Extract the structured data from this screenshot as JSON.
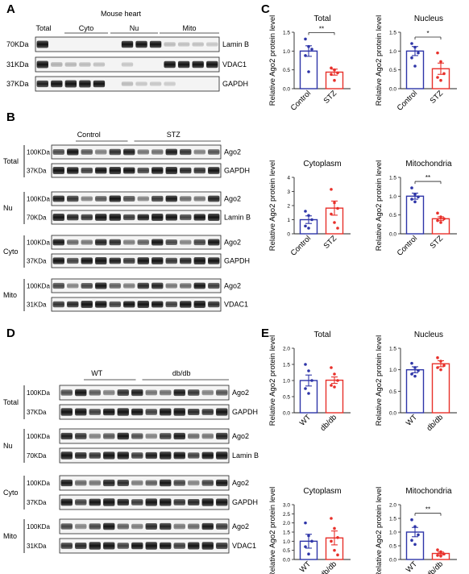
{
  "panelA": {
    "letter": "A",
    "header": "Mouse heart",
    "groups": [
      "Total",
      "Cyto",
      "Nu",
      "Mito"
    ],
    "rows": [
      {
        "size": "70KDa",
        "protein": "Lamin B"
      },
      {
        "size": "31KDa",
        "protein": "VDAC1"
      },
      {
        "size": "37KDa",
        "protein": "GAPDH"
      }
    ]
  },
  "panelB": {
    "letter": "B",
    "groups": [
      "Control",
      "STZ"
    ],
    "blocks": [
      {
        "fraction": "Total",
        "rows": [
          {
            "size": "100KDa",
            "protein": "Ago2"
          },
          {
            "size": "37KDa",
            "protein": "GAPDH"
          }
        ]
      },
      {
        "fraction": "Nu",
        "rows": [
          {
            "size": "100KDa",
            "protein": "Ago2"
          },
          {
            "size": "70KDa",
            "protein": "Lamin B"
          }
        ]
      },
      {
        "fraction": "Cyto",
        "rows": [
          {
            "size": "100KDa",
            "protein": "Ago2"
          },
          {
            "size": "37KDa",
            "protein": "GAPDH"
          }
        ]
      },
      {
        "fraction": "Mito",
        "rows": [
          {
            "size": "100KDa",
            "protein": "Ago2"
          },
          {
            "size": "31KDa",
            "protein": "VDAC1"
          }
        ]
      }
    ]
  },
  "panelD": {
    "letter": "D",
    "groups": [
      "WT",
      "db/db"
    ],
    "blocks": [
      {
        "fraction": "Total",
        "rows": [
          {
            "size": "100KDa",
            "protein": "Ago2"
          },
          {
            "size": "37KDa",
            "protein": "GAPDH"
          }
        ]
      },
      {
        "fraction": "Nu",
        "rows": [
          {
            "size": "100KDa",
            "protein": "Ago2"
          },
          {
            "size": "70KDa",
            "protein": "Lamin B"
          }
        ]
      },
      {
        "fraction": "Cyto",
        "rows": [
          {
            "size": "100KDa",
            "protein": "Ago2"
          },
          {
            "size": "37KDa",
            "protein": "GAPDH"
          }
        ]
      },
      {
        "fraction": "Mito",
        "rows": [
          {
            "size": "100KDa",
            "protein": "Ago2"
          },
          {
            "size": "31KDa",
            "protein": "VDAC1"
          }
        ]
      }
    ]
  },
  "colors": {
    "group1": "#2e35a8",
    "group2": "#e8302a"
  },
  "chart_data": [
    {
      "panel": "C",
      "type": "bar",
      "title": "Total",
      "ylabel": "Relative Ago2 protein level",
      "categories": [
        "Control",
        "STZ"
      ],
      "values": [
        1.0,
        0.44
      ],
      "errors": [
        0.14,
        0.08
      ],
      "ylim": [
        0,
        1.5
      ],
      "yticks": [
        "0.0",
        "0.5",
        "1.0",
        "1.5"
      ],
      "significance": "**",
      "points": [
        [
          1.32,
          1.12,
          1.05,
          0.88,
          0.45
        ],
        [
          0.55,
          0.5,
          0.42,
          0.38,
          0.22
        ]
      ]
    },
    {
      "panel": "C",
      "type": "bar",
      "title": "Nucleus",
      "ylabel": "Relative Ago2 protein level",
      "categories": [
        "Control",
        "STZ"
      ],
      "values": [
        1.0,
        0.53
      ],
      "errors": [
        0.12,
        0.15
      ],
      "ylim": [
        0,
        1.5
      ],
      "yticks": [
        "0.0",
        "0.5",
        "1.0",
        "1.5"
      ],
      "significance": "*",
      "points": [
        [
          1.2,
          1.1,
          0.95,
          0.82,
          0.6
        ],
        [
          0.95,
          0.72,
          0.4,
          0.3,
          0.22
        ]
      ]
    },
    {
      "panel": "C",
      "type": "bar",
      "title": "Cytoplasm",
      "ylabel": "Relative Ago2 protein level",
      "categories": [
        "Control",
        "STZ"
      ],
      "values": [
        1.0,
        1.82
      ],
      "errors": [
        0.27,
        0.5
      ],
      "ylim": [
        0,
        4
      ],
      "yticks": [
        "0",
        "1",
        "2",
        "3",
        "4"
      ],
      "significance": "",
      "points": [
        [
          1.6,
          1.3,
          1.0,
          0.55,
          0.4
        ],
        [
          3.15,
          2.2,
          1.8,
          1.4,
          0.8,
          0.4
        ]
      ]
    },
    {
      "panel": "C",
      "type": "bar",
      "title": "Mitochondria",
      "ylabel": "Relative Ago2 protein level",
      "categories": [
        "Control",
        "STZ"
      ],
      "values": [
        1.0,
        0.4
      ],
      "errors": [
        0.08,
        0.05
      ],
      "ylim": [
        0,
        1.5
      ],
      "yticks": [
        "0.0",
        "0.5",
        "1.0",
        "1.5"
      ],
      "significance": "**",
      "points": [
        [
          1.22,
          1.05,
          0.98,
          0.92,
          0.85
        ],
        [
          0.55,
          0.45,
          0.4,
          0.35,
          0.3
        ]
      ]
    },
    {
      "panel": "E",
      "type": "bar",
      "title": "Total",
      "ylabel": "Relative Ago2 protein level",
      "categories": [
        "WT",
        "db/db"
      ],
      "values": [
        1.0,
        1.01
      ],
      "errors": [
        0.17,
        0.1
      ],
      "ylim": [
        0,
        2.0
      ],
      "yticks": [
        "0.0",
        "0.5",
        "1.0",
        "1.5",
        "2.0"
      ],
      "significance": "",
      "points": [
        [
          1.5,
          1.3,
          1.0,
          0.75,
          0.6
        ],
        [
          1.4,
          1.2,
          1.0,
          0.85,
          0.8
        ]
      ]
    },
    {
      "panel": "E",
      "type": "bar",
      "title": "Nucleus",
      "ylabel": "Relative Ago2 protein level",
      "categories": [
        "WT",
        "db/db"
      ],
      "values": [
        1.0,
        1.14
      ],
      "errors": [
        0.07,
        0.07
      ],
      "ylim": [
        0,
        1.5
      ],
      "yticks": [
        "0.0",
        "0.5",
        "1.0",
        "1.5"
      ],
      "significance": "",
      "points": [
        [
          1.15,
          1.05,
          0.98,
          0.9,
          0.85
        ],
        [
          1.28,
          1.2,
          1.1,
          1.05,
          1.0
        ]
      ]
    },
    {
      "panel": "E",
      "type": "bar",
      "title": "Cytoplasm",
      "ylabel": "Relative Ago2 protein level",
      "categories": [
        "WT",
        "db/db"
      ],
      "values": [
        1.0,
        1.18
      ],
      "errors": [
        0.38,
        0.38
      ],
      "ylim": [
        0,
        3.0
      ],
      "yticks": [
        "0.0",
        "0.5",
        "1.0",
        "1.5",
        "2.0",
        "2.5",
        "3.0"
      ],
      "significance": "",
      "points": [
        [
          2.0,
          1.3,
          1.0,
          0.7,
          0.3
        ],
        [
          2.25,
          1.7,
          1.2,
          1.0,
          0.5,
          0.25
        ]
      ]
    },
    {
      "panel": "E",
      "type": "bar",
      "title": "Mitochondria",
      "ylabel": "Relative Ago2 protein level",
      "categories": [
        "WT",
        "db/db"
      ],
      "values": [
        1.0,
        0.22
      ],
      "errors": [
        0.17,
        0.05
      ],
      "ylim": [
        0,
        2.0
      ],
      "yticks": [
        "0.0",
        "0.5",
        "1.0",
        "1.5",
        "2.0"
      ],
      "significance": "**",
      "points": [
        [
          1.45,
          1.2,
          0.9,
          0.7,
          0.55
        ],
        [
          0.35,
          0.28,
          0.2,
          0.15,
          0.12
        ]
      ]
    }
  ],
  "panelC": {
    "letter": "C"
  },
  "panelE": {
    "letter": "E"
  }
}
